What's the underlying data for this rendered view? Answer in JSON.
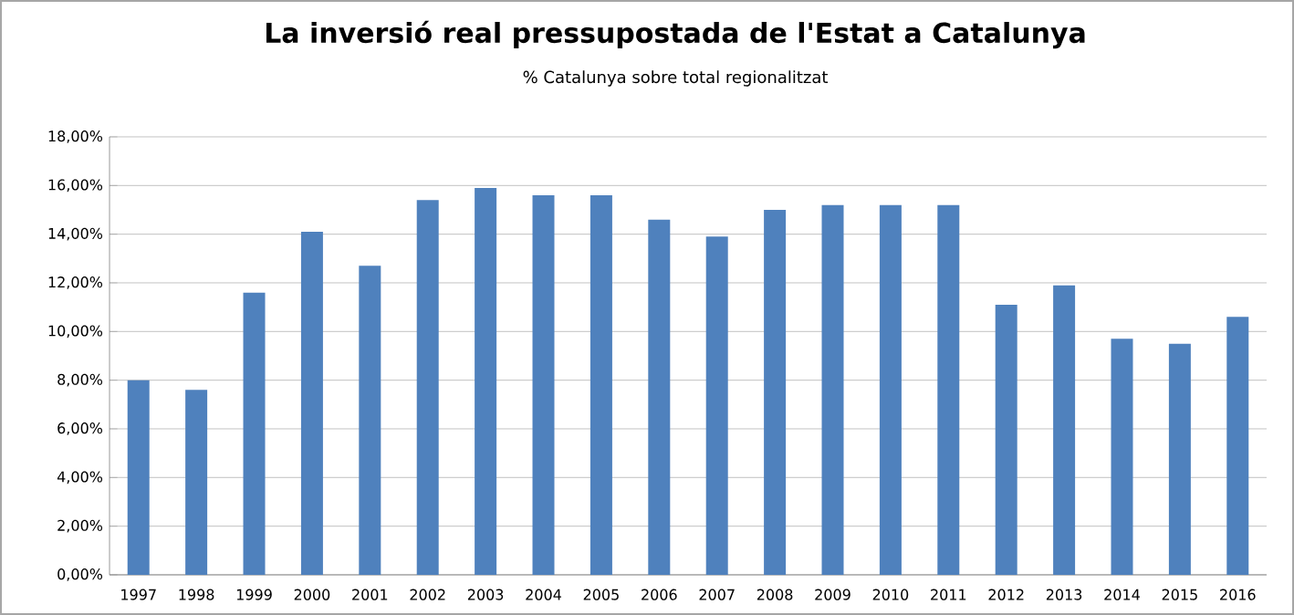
{
  "chart_data": {
    "type": "bar",
    "title": "La inversió real pressupostada de l'Estat a Catalunya",
    "subtitle": "% Catalunya sobre total regionalitzat",
    "categories": [
      "1997",
      "1998",
      "1999",
      "2000",
      "2001",
      "2002",
      "2003",
      "2004",
      "2005",
      "2006",
      "2007",
      "2008",
      "2009",
      "2010",
      "2011",
      "2012",
      "2013",
      "2014",
      "2015",
      "2016"
    ],
    "values": [
      8.0,
      7.6,
      11.6,
      14.1,
      12.7,
      15.4,
      15.9,
      15.6,
      15.6,
      14.6,
      13.9,
      15.0,
      15.2,
      15.2,
      15.2,
      11.1,
      11.9,
      9.7,
      9.5,
      10.6
    ],
    "color": "#4f81bd",
    "ylim": [
      0,
      18
    ],
    "yticks": [
      {
        "value": 0,
        "label": "0,00%"
      },
      {
        "value": 2,
        "label": "2,00%"
      },
      {
        "value": 4,
        "label": "4,00%"
      },
      {
        "value": 6,
        "label": "6,00%"
      },
      {
        "value": 8,
        "label": "8,00%"
      },
      {
        "value": 10,
        "label": "10,00%"
      },
      {
        "value": 12,
        "label": "12,00%"
      },
      {
        "value": 14,
        "label": "14,00%"
      },
      {
        "value": 16,
        "label": "16,00%"
      },
      {
        "value": 18,
        "label": "18,00%"
      }
    ],
    "grid": "y"
  }
}
